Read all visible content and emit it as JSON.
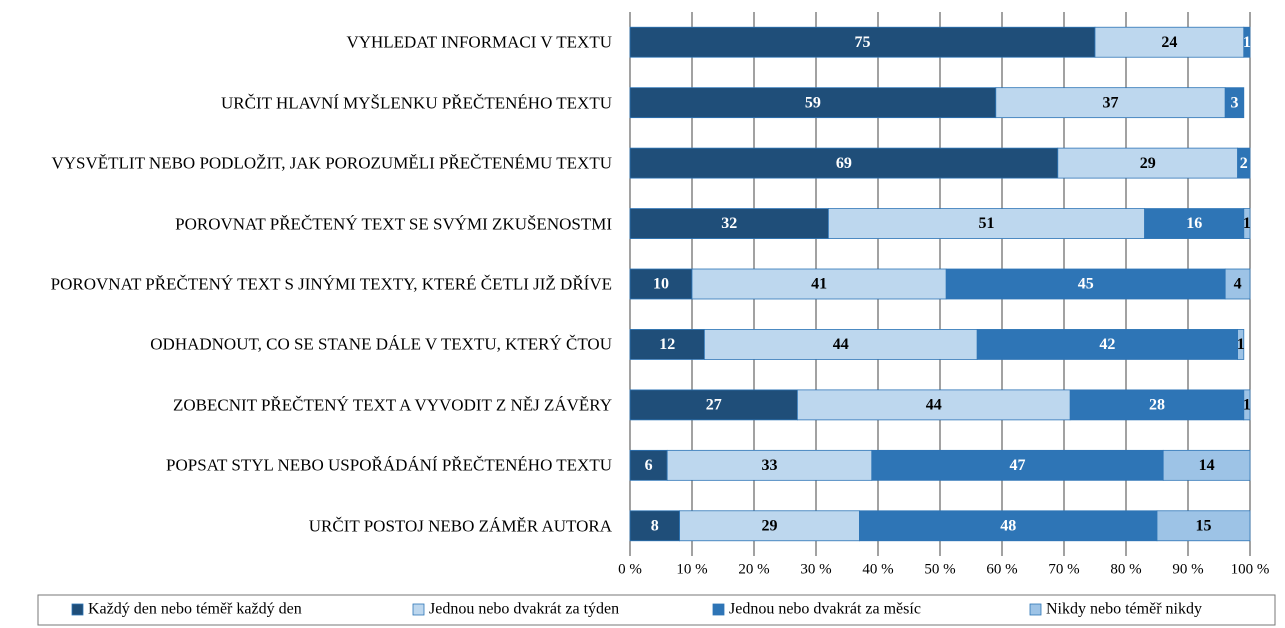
{
  "chart_data": {
    "type": "stacked_barh",
    "categories": [
      "VYHLEDAT INFORMACI V TEXTU",
      "URČIT HLAVNÍ MYŠLENKU PŘEČTENÉHO TEXTU",
      "VYSVĚTLIT NEBO PODLOŽIT, JAK POROZUMĚLI PŘEČTENÉMU TEXTU",
      "POROVNAT PŘEČTENÝ TEXT SE SVÝMI ZKUŠENOSTMI",
      "POROVNAT PŘEČTENÝ TEXT S JINÝMI TEXTY, KTERÉ ČETLI JIŽ DŘÍVE",
      "ODHADNOUT, CO SE STANE DÁLE V TEXTU, KTERÝ ČTOU",
      "ZOBECNIT PŘEČTENÝ TEXT A VYVODIT Z NĚJ ZÁVĚRY",
      "POPSAT STYL NEBO USPOŘÁDÁNÍ PŘEČTENÉHO TEXTU",
      "URČIT POSTOJ NEBO ZÁMĚR AUTORA"
    ],
    "series": [
      {
        "name": "Každý den nebo téměř každý den",
        "color": "#1f4e79",
        "values": [
          75,
          59,
          69,
          32,
          10,
          12,
          27,
          6,
          8
        ]
      },
      {
        "name": "Jednou nebo dvakrát za týden",
        "color": "#bdd7ee",
        "values": [
          24,
          37,
          29,
          51,
          41,
          44,
          44,
          33,
          29
        ]
      },
      {
        "name": "Jednou nebo dvakrát za měsíc",
        "color": "#2e75b6",
        "values": [
          1,
          3,
          2,
          16,
          45,
          42,
          28,
          47,
          48
        ]
      },
      {
        "name": "Nikdy nebo téměř nikdy",
        "color": "#9dc3e6",
        "values": [
          null,
          null,
          null,
          1,
          4,
          1,
          1,
          14,
          15
        ]
      }
    ],
    "xlim": [
      0,
      100
    ],
    "xticks": [
      {
        "value": 0,
        "label": "0 %"
      },
      {
        "value": 10,
        "label": "10 %"
      },
      {
        "value": 20,
        "label": "20 %"
      },
      {
        "value": 30,
        "label": "30 %"
      },
      {
        "value": 40,
        "label": "40 %"
      },
      {
        "value": 50,
        "label": "50 %"
      },
      {
        "value": 60,
        "label": "60 %"
      },
      {
        "value": 70,
        "label": "70 %"
      },
      {
        "value": 80,
        "label": "80 %"
      },
      {
        "value": 90,
        "label": "90 %"
      },
      {
        "value": 100,
        "label": "100 %"
      }
    ],
    "grid": true,
    "legend": "bottom"
  }
}
